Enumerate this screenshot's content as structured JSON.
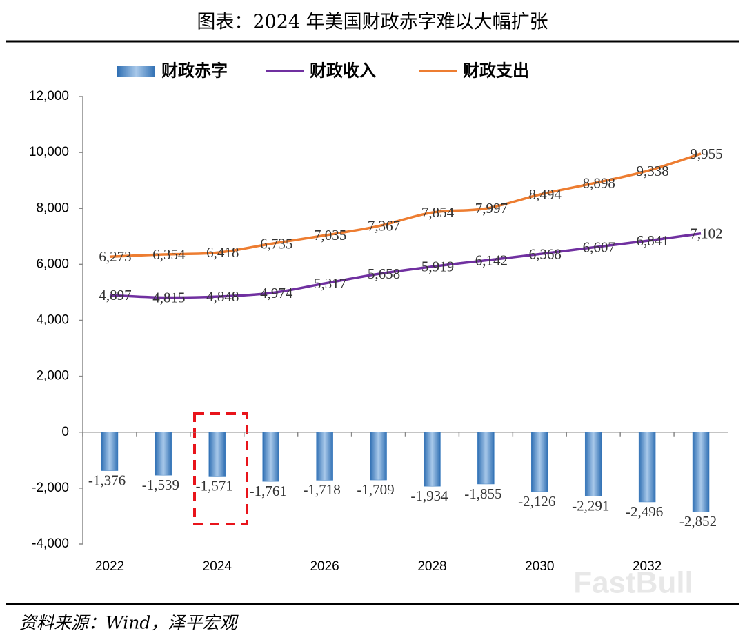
{
  "title": "图表：2024 年美国财政赤字难以大幅扩张",
  "source": "资料来源：Wind，泽平宏观",
  "watermark": "FastBull",
  "chart_data": {
    "type": "bar-line",
    "categories": [
      "2022",
      null,
      "2024",
      null,
      "2026",
      null,
      "2028",
      null,
      "2030",
      null,
      "2032",
      null
    ],
    "series": [
      {
        "name": "财政赤字",
        "type": "bar",
        "color": "#3f7fc1",
        "values": [
          -1376,
          -1539,
          -1571,
          -1761,
          -1718,
          -1709,
          -1934,
          -1855,
          -2126,
          -2291,
          -2496,
          -2852
        ],
        "value_labels": [
          "-1,376",
          "-1,539",
          "-1,571",
          "-1,761",
          "-1,718",
          "-1,709",
          "-1,934",
          "-1,855",
          "-2,126",
          "-2,291",
          "-2,496",
          "-2,852"
        ]
      },
      {
        "name": "财政收入",
        "type": "line",
        "color": "#7030a0",
        "values": [
          4897,
          4815,
          4848,
          4974,
          5317,
          5658,
          5919,
          6142,
          6368,
          6607,
          6841,
          7102
        ],
        "value_labels": [
          "4,897",
          "4,815",
          "4,848",
          "4,974",
          "5,317",
          "5,658",
          "5,919",
          "6,142",
          "6,368",
          "6,607",
          "6,841",
          "7,102"
        ]
      },
      {
        "name": "财政支出",
        "type": "line",
        "color": "#ed7d31",
        "values": [
          6273,
          6354,
          6418,
          6735,
          7035,
          7367,
          7854,
          7997,
          8494,
          8898,
          9338,
          9955
        ],
        "value_labels": [
          "6,273",
          "6,354",
          "6,418",
          "6,735",
          "7,035",
          "7,367",
          "7,854",
          "7,997",
          "8,494",
          "8,898",
          "9,338",
          "9,955"
        ]
      }
    ],
    "ylim": [
      -4000,
      12000
    ],
    "yticks": [
      {
        "value": -4000,
        "label": "-4,000"
      },
      {
        "value": -2000,
        "label": "-2,000"
      },
      0,
      {
        "value": 2000,
        "label": "2,000"
      },
      {
        "value": 4000,
        "label": "4,000"
      },
      {
        "value": 6000,
        "label": "6,000"
      },
      {
        "value": 8000,
        "label": "8,000"
      },
      {
        "value": 10000,
        "label": "10,000"
      },
      {
        "value": 12000,
        "label": "12,000"
      }
    ],
    "legend": "top"
  }
}
